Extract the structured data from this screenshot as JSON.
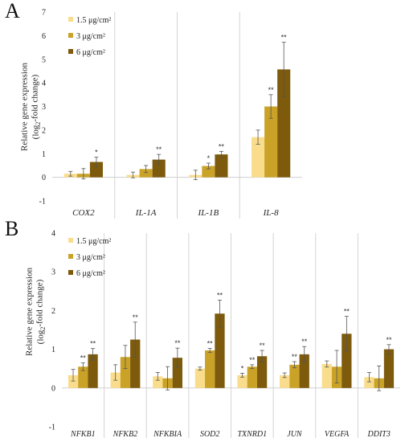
{
  "panels": [
    "A",
    "B"
  ],
  "chart_data": [
    {
      "type": "bar",
      "title": "",
      "xlabel": "",
      "ylabel": "Relative gene expression (log2-fold change)",
      "ylim": [
        -1,
        7
      ],
      "yticks": [
        "-1",
        "0",
        "1",
        "2",
        "3",
        "4",
        "5",
        "6",
        "7"
      ],
      "categories": [
        "COX2",
        "IL-1A",
        "IL-1B",
        "IL-8"
      ],
      "legend_position": "top-left",
      "series": [
        {
          "name": "1.5 μg/cm²",
          "color": "#f9dd8c",
          "values": [
            0.15,
            0.1,
            0.1,
            1.7
          ],
          "errors": [
            0.1,
            0.12,
            0.2,
            0.3
          ],
          "marks": [
            "",
            "",
            "",
            ""
          ]
        },
        {
          "name": "3 μg/cm²",
          "color": "#c9a227",
          "values": [
            0.15,
            0.35,
            0.48,
            3.0
          ],
          "errors": [
            0.22,
            0.15,
            0.12,
            0.5
          ],
          "marks": [
            "",
            "",
            "*",
            "**"
          ]
        },
        {
          "name": "6 μg/cm²",
          "color": "#7d5a0c",
          "values": [
            0.65,
            0.75,
            0.97,
            4.57
          ],
          "errors": [
            0.2,
            0.22,
            0.13,
            1.15
          ],
          "marks": [
            "*",
            "**",
            "**",
            "**"
          ]
        }
      ]
    },
    {
      "type": "bar",
      "title": "",
      "xlabel": "",
      "ylabel": "Relative gene expression (log2-fold change)",
      "ylim": [
        -1,
        4
      ],
      "yticks": [
        "-1",
        "0",
        "1",
        "2",
        "3",
        "4"
      ],
      "categories": [
        "NFKB1",
        "NFKB2",
        "NFKBIA",
        "SOD2",
        "TXNRD1",
        "JUN",
        "VEGFA",
        "DDIT3"
      ],
      "legend_position": "top-left",
      "series": [
        {
          "name": "1.5 μg/cm²",
          "color": "#f9dd8c",
          "values": [
            0.33,
            0.4,
            0.3,
            0.5,
            0.33,
            0.33,
            0.62,
            0.28
          ],
          "errors": [
            0.15,
            0.2,
            0.1,
            0.04,
            0.05,
            0.06,
            0.08,
            0.12
          ],
          "marks": [
            "",
            "",
            "",
            "",
            "*",
            "",
            "",
            ""
          ]
        },
        {
          "name": "3 μg/cm²",
          "color": "#c9a227",
          "values": [
            0.55,
            0.8,
            0.25,
            0.97,
            0.55,
            0.6,
            0.55,
            0.25
          ],
          "errors": [
            0.1,
            0.3,
            0.3,
            0.05,
            0.05,
            0.08,
            0.42,
            0.32
          ],
          "marks": [
            "**",
            "",
            "",
            "**",
            "**",
            "**",
            "",
            ""
          ]
        },
        {
          "name": "6 μg/cm²",
          "color": "#7d5a0c",
          "values": [
            0.87,
            1.25,
            0.78,
            1.92,
            0.82,
            0.87,
            1.4,
            1.0
          ],
          "errors": [
            0.15,
            0.45,
            0.25,
            0.35,
            0.15,
            0.2,
            0.45,
            0.12
          ],
          "marks": [
            "**",
            "**",
            "**",
            "**",
            "**",
            "**",
            "**",
            "**"
          ]
        }
      ]
    }
  ]
}
